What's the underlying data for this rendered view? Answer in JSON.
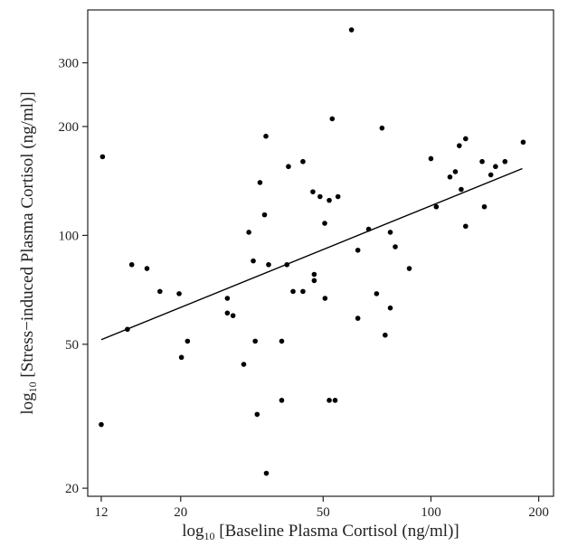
{
  "chart_data": {
    "type": "scatter",
    "title": "",
    "xlabel_prefix": "log",
    "xlabel_sub": "10",
    "xlabel_rest": " [Baseline Plasma Cortisol (ng/ml)]",
    "ylabel_prefix": "log",
    "ylabel_sub": "10",
    "ylabel_rest": " [Stress−induced Plasma Cortisol (ng/ml)]",
    "x_scale": "log",
    "y_scale": "log",
    "xlim": [
      11,
      220
    ],
    "ylim": [
      19,
      420
    ],
    "x_ticks": [
      12,
      20,
      50,
      100,
      200
    ],
    "x_tick_labels": [
      "12",
      "20",
      "50",
      "100",
      "200"
    ],
    "y_ticks": [
      20,
      50,
      100,
      200,
      300
    ],
    "y_tick_labels": [
      "20",
      "50",
      "100",
      "200",
      "300"
    ],
    "grid": false,
    "points": [
      [
        12.0,
        30
      ],
      [
        12.1,
        165
      ],
      [
        14.2,
        55
      ],
      [
        14.6,
        83
      ],
      [
        16.1,
        81
      ],
      [
        17.5,
        70
      ],
      [
        19.8,
        69
      ],
      [
        20.1,
        46
      ],
      [
        20.9,
        51
      ],
      [
        27.0,
        67
      ],
      [
        27.0,
        61
      ],
      [
        28.0,
        60
      ],
      [
        30.0,
        44
      ],
      [
        31.0,
        102
      ],
      [
        31.9,
        85
      ],
      [
        32.3,
        51
      ],
      [
        32.7,
        32
      ],
      [
        33.3,
        140
      ],
      [
        34.3,
        114
      ],
      [
        34.6,
        188
      ],
      [
        34.7,
        22
      ],
      [
        35.2,
        83
      ],
      [
        38.3,
        51
      ],
      [
        38.3,
        35
      ],
      [
        39.6,
        83
      ],
      [
        40.0,
        155
      ],
      [
        41.2,
        70
      ],
      [
        43.9,
        70
      ],
      [
        43.9,
        160
      ],
      [
        46.8,
        132
      ],
      [
        47.2,
        75
      ],
      [
        47.2,
        78
      ],
      [
        49.0,
        128
      ],
      [
        50.5,
        108
      ],
      [
        50.6,
        67
      ],
      [
        52.0,
        125
      ],
      [
        52.0,
        35
      ],
      [
        53.0,
        210
      ],
      [
        54.0,
        35
      ],
      [
        55.0,
        128
      ],
      [
        60.0,
        370
      ],
      [
        62.5,
        59
      ],
      [
        62.5,
        91
      ],
      [
        67.0,
        104
      ],
      [
        70.5,
        69
      ],
      [
        73.0,
        198
      ],
      [
        74.5,
        53
      ],
      [
        77.0,
        63
      ],
      [
        77.0,
        102
      ],
      [
        79.5,
        93
      ],
      [
        87.0,
        81
      ],
      [
        100.0,
        163
      ],
      [
        103.5,
        120
      ],
      [
        113.0,
        145
      ],
      [
        117.0,
        150
      ],
      [
        120.0,
        177
      ],
      [
        121.5,
        134
      ],
      [
        125.0,
        185
      ],
      [
        125.0,
        106
      ],
      [
        139.0,
        160
      ],
      [
        141.0,
        120
      ],
      [
        147.0,
        147
      ],
      [
        151.5,
        155
      ],
      [
        161.0,
        160
      ],
      [
        181.0,
        181
      ]
    ],
    "fit_line": {
      "x": [
        12,
        180
      ],
      "y": [
        51.5,
        153
      ]
    }
  }
}
